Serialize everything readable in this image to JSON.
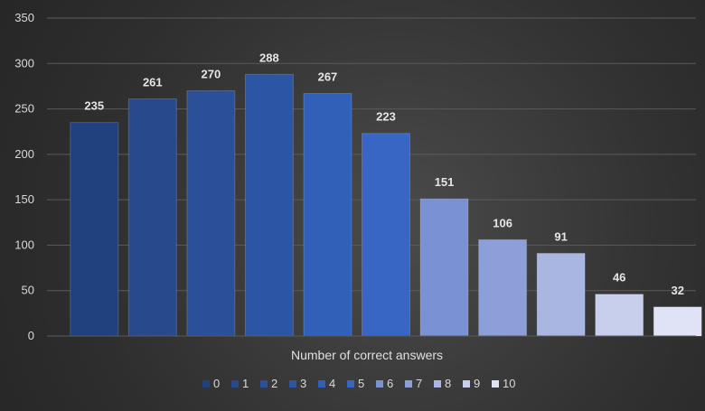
{
  "chart_data": {
    "type": "bar",
    "xlabel": "Number of correct answers",
    "ylabel": "",
    "ylim": [
      0,
      350
    ],
    "ytick_step": 50,
    "grid": true,
    "legend_position": "bottom",
    "categories": [
      "0",
      "1",
      "2",
      "3",
      "4",
      "5",
      "6",
      "7",
      "8",
      "9",
      "10"
    ],
    "values": [
      235,
      261,
      270,
      288,
      267,
      223,
      151,
      106,
      91,
      46,
      32
    ],
    "colors": [
      "#21407e",
      "#28498c",
      "#2b4f99",
      "#2d55a6",
      "#3060b8",
      "#3866c4",
      "#7a91d4",
      "#8c9fd8",
      "#a9b6e2",
      "#c7cfec",
      "#dfe3f5"
    ]
  }
}
